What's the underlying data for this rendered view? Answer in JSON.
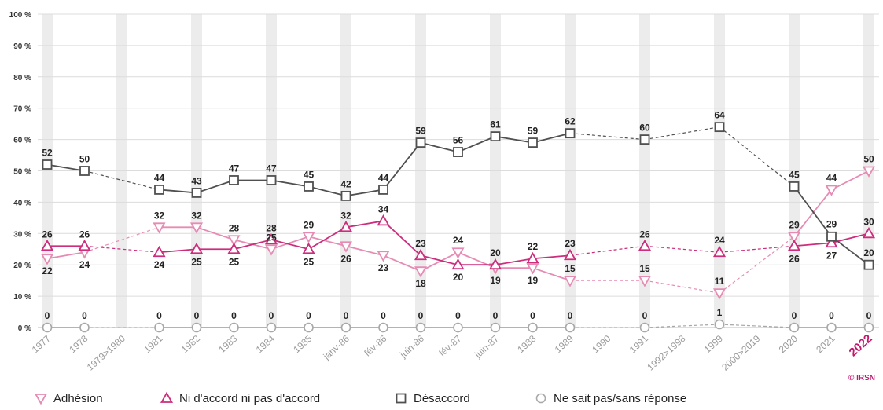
{
  "chart_data": {
    "type": "line",
    "categories": [
      "1977",
      "1978",
      "1979>1980",
      "1981",
      "1982",
      "1983",
      "1984",
      "1985",
      "janv-86",
      "fév-86",
      "juin-86",
      "fév-87",
      "juin-87",
      "1988",
      "1989",
      "1990",
      "1991",
      "1992>1998",
      "1999",
      "2000>2019",
      "2020",
      "2021",
      "2022"
    ],
    "highlight_category": "2022",
    "gap_categories": [
      "1979>1980",
      "1990",
      "1992>1998",
      "2000>2019"
    ],
    "ylim": [
      0,
      100
    ],
    "yticks": [
      0,
      10,
      20,
      30,
      40,
      50,
      60,
      70,
      80,
      90,
      100
    ],
    "ytick_labels": [
      "0 %",
      "10 %",
      "20 %",
      "30 %",
      "40 %",
      "50 %",
      "60 %",
      "70 %",
      "80 %",
      "90 %",
      "100 %"
    ],
    "grid": true,
    "legend_position": "bottom",
    "series": [
      {
        "name": "Adhésion",
        "color": "#e68bb4",
        "marker": "triangle-down",
        "values": [
          22,
          24,
          null,
          32,
          32,
          28,
          25,
          29,
          26,
          23,
          18,
          24,
          19,
          19,
          15,
          null,
          15,
          null,
          11,
          null,
          29,
          44,
          50
        ],
        "labels": [
          "22",
          "24",
          "",
          "32",
          "32",
          "28",
          "25",
          "29",
          "26",
          "23",
          "18",
          "24",
          "19",
          "19",
          "15",
          "",
          "15",
          "",
          "11",
          "",
          "29",
          "44",
          "50"
        ]
      },
      {
        "name": "Ni d'accord ni pas d'accord",
        "color": "#cc2d7c",
        "marker": "triangle-up",
        "values": [
          26,
          26,
          null,
          24,
          25,
          25,
          28,
          25,
          32,
          34,
          23,
          20,
          20,
          22,
          23,
          null,
          26,
          null,
          24,
          null,
          26,
          27,
          30
        ],
        "labels": [
          "26",
          "26",
          "",
          "24",
          "25",
          "25",
          "28",
          "25",
          "32",
          "34",
          "23",
          "20",
          "20",
          "22",
          "23",
          "",
          "26",
          "",
          "24",
          "",
          "26",
          "27",
          "30"
        ]
      },
      {
        "name": "Désaccord",
        "color": "#505050",
        "marker": "square",
        "values": [
          52,
          50,
          null,
          44,
          43,
          47,
          47,
          45,
          42,
          44,
          59,
          56,
          61,
          59,
          62,
          null,
          60,
          null,
          64,
          null,
          45,
          29,
          20
        ],
        "labels": [
          "52",
          "50",
          "",
          "44",
          "43",
          "47",
          "47",
          "45",
          "42",
          "44",
          "59",
          "56",
          "61",
          "59",
          "62",
          "",
          "60",
          "",
          "64",
          "",
          "45",
          "29",
          "20"
        ]
      },
      {
        "name": "Ne sait pas/sans réponse",
        "color": "#a8a8a8",
        "marker": "circle",
        "values": [
          0,
          0,
          null,
          0,
          0,
          0,
          0,
          0,
          0,
          0,
          0,
          0,
          0,
          0,
          0,
          null,
          0,
          null,
          1,
          null,
          0,
          0,
          0
        ],
        "labels": [
          "0",
          "0",
          "",
          "0",
          "0",
          "0",
          "0",
          "0",
          "0",
          "0",
          "0",
          "0",
          "0",
          "0",
          "0",
          "",
          "0",
          "",
          "1",
          "",
          "0",
          "0",
          "0"
        ]
      }
    ]
  },
  "credit": "© IRSN"
}
